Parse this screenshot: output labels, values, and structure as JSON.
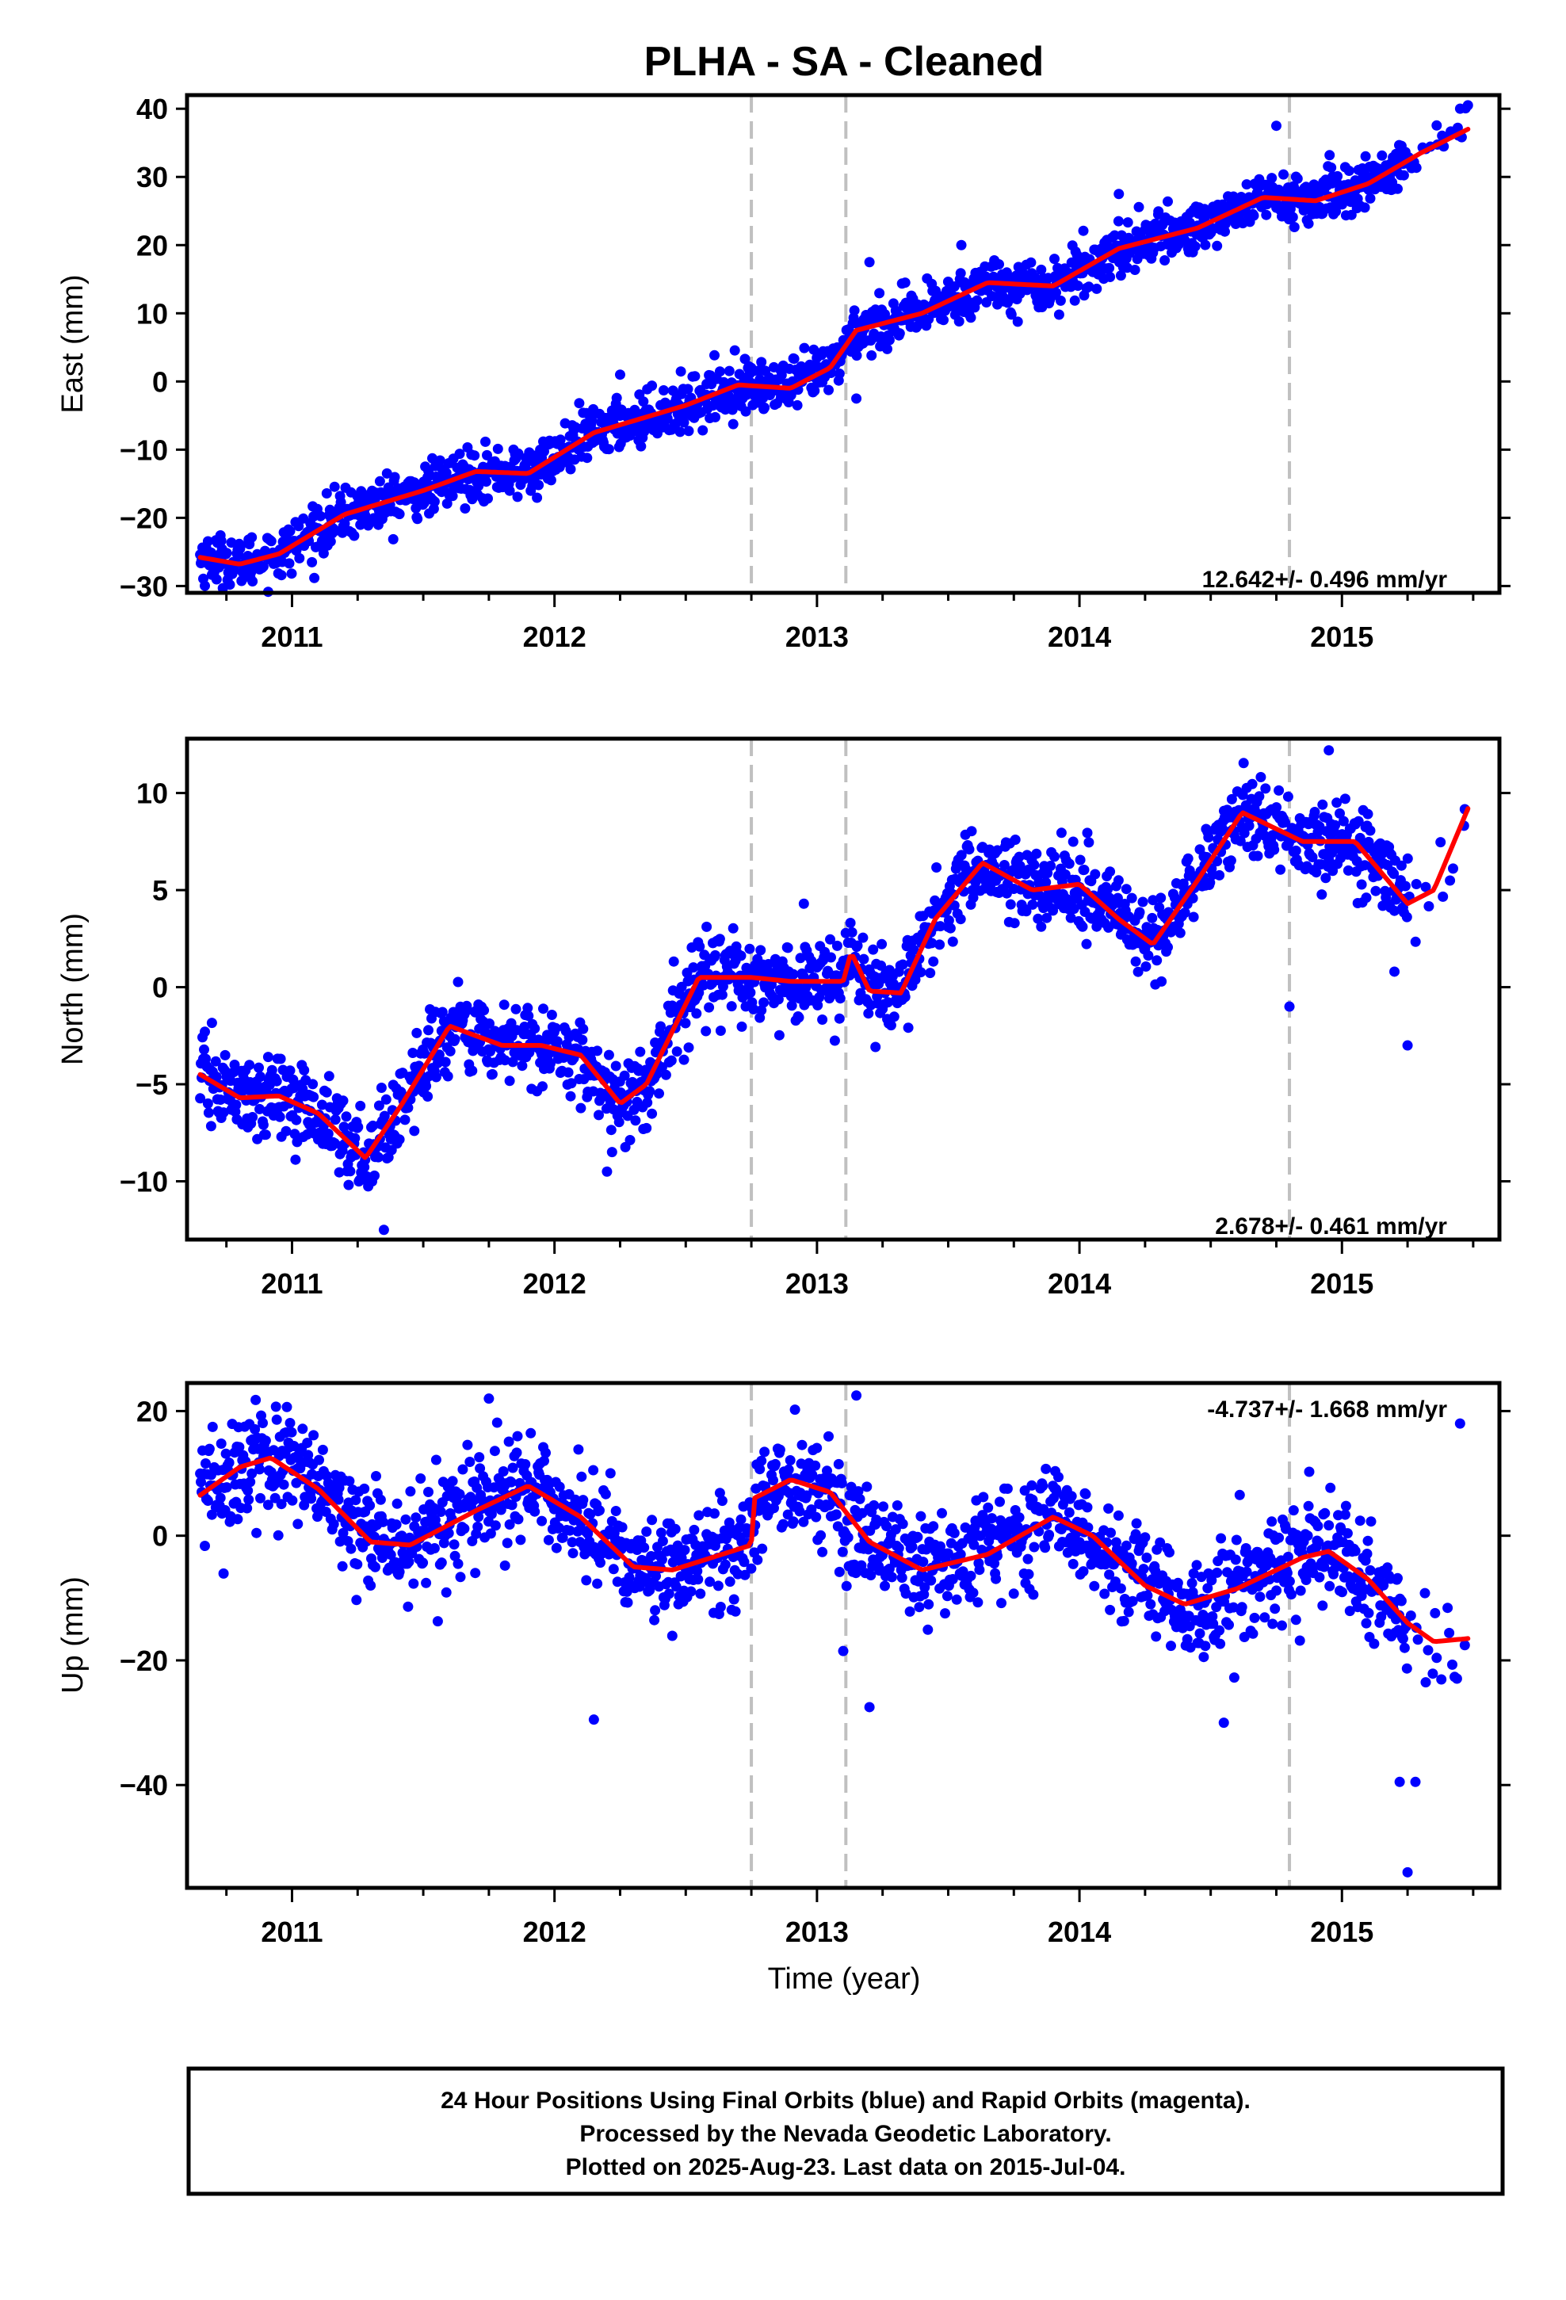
{
  "title": "PLHA  - SA - Cleaned",
  "xlabel": "Time (year)",
  "footer": [
    "24 Hour Positions Using Final Orbits (blue) and Rapid Orbits (magenta).",
    "Processed by the Nevada Geodetic Laboratory.",
    "Plotted on 2025-Aug-23. Last data on 2015-Jul-04."
  ],
  "colors": {
    "points": "#0000ff",
    "fit": "#ff0000",
    "breaks": "#c0c0c0",
    "axes": "#000000"
  },
  "chart_data": [
    {
      "type": "scatter",
      "ylabel": "East (mm)",
      "xlim": [
        2010.6,
        2015.6
      ],
      "ylim": [
        -31,
        42
      ],
      "yticks": [
        40,
        30,
        20,
        10,
        0,
        -10,
        -20,
        -30
      ],
      "xticks": [
        2011,
        2012,
        2013,
        2014,
        2015
      ],
      "rate_text": "12.642+/- 0.496 mm/yr",
      "rate_position": "bottom-right",
      "breaks": [
        2012.75,
        2013.11,
        2014.8
      ],
      "trend": [
        [
          2010.65,
          -25.8
        ],
        [
          2010.8,
          -26.8
        ],
        [
          2010.95,
          -25.3
        ],
        [
          2011.2,
          -19.5
        ],
        [
          2011.5,
          -16.0
        ],
        [
          2011.7,
          -13.2
        ],
        [
          2011.9,
          -13.5
        ],
        [
          2012.15,
          -7.5
        ],
        [
          2012.5,
          -3.5
        ],
        [
          2012.7,
          -0.5
        ],
        [
          2012.9,
          -1.0
        ],
        [
          2013.05,
          2.0
        ],
        [
          2013.15,
          7.5
        ],
        [
          2013.4,
          10.0
        ],
        [
          2013.65,
          14.5
        ],
        [
          2013.9,
          14.0
        ],
        [
          2014.15,
          19.5
        ],
        [
          2014.45,
          22.5
        ],
        [
          2014.7,
          27.0
        ],
        [
          2014.9,
          26.5
        ],
        [
          2015.1,
          29.0
        ],
        [
          2015.3,
          33.5
        ],
        [
          2015.48,
          37.0
        ]
      ],
      "scatter_sigma": 1.9,
      "outliers": [
        [
          2014.75,
          37.5
        ],
        [
          2015.48,
          40.5
        ],
        [
          2013.15,
          -2.5
        ],
        [
          2013.2,
          17.5
        ],
        [
          2012.25,
          1.0
        ],
        [
          2014.15,
          27.5
        ],
        [
          2013.55,
          20.0
        ],
        [
          2014.3,
          24.5
        ]
      ]
    },
    {
      "type": "scatter",
      "ylabel": "North (mm)",
      "xlim": [
        2010.6,
        2015.6
      ],
      "ylim": [
        -13,
        12.8
      ],
      "yticks": [
        10,
        5,
        0,
        -5,
        -10
      ],
      "xticks": [
        2011,
        2012,
        2013,
        2014,
        2015
      ],
      "rate_text": "2.678+/- 0.461 mm/yr",
      "rate_position": "bottom-right",
      "breaks": [
        2012.75,
        2013.11,
        2014.8
      ],
      "trend": [
        [
          2010.65,
          -4.5
        ],
        [
          2010.8,
          -5.7
        ],
        [
          2010.95,
          -5.6
        ],
        [
          2011.1,
          -6.5
        ],
        [
          2011.28,
          -8.8
        ],
        [
          2011.42,
          -6.0
        ],
        [
          2011.6,
          -2.0
        ],
        [
          2011.8,
          -3.0
        ],
        [
          2011.95,
          -3.0
        ],
        [
          2012.1,
          -3.5
        ],
        [
          2012.25,
          -6.0
        ],
        [
          2012.35,
          -5.0
        ],
        [
          2012.55,
          0.5
        ],
        [
          2012.75,
          0.5
        ],
        [
          2012.9,
          0.3
        ],
        [
          2013.1,
          0.3
        ],
        [
          2013.13,
          1.8
        ],
        [
          2013.2,
          -0.2
        ],
        [
          2013.32,
          -0.3
        ],
        [
          2013.45,
          3.5
        ],
        [
          2013.63,
          6.4
        ],
        [
          2013.82,
          5.0
        ],
        [
          2014.0,
          5.3
        ],
        [
          2014.15,
          3.5
        ],
        [
          2014.28,
          2.2
        ],
        [
          2014.45,
          5.5
        ],
        [
          2014.62,
          9.0
        ],
        [
          2014.85,
          7.5
        ],
        [
          2015.05,
          7.5
        ],
        [
          2015.25,
          4.3
        ],
        [
          2015.35,
          5.0
        ],
        [
          2015.48,
          9.2
        ]
      ],
      "scatter_sigma": 1.05,
      "outliers": [
        [
          2015.25,
          -3.0
        ],
        [
          2014.95,
          12.2
        ],
        [
          2011.35,
          -12.5
        ],
        [
          2012.2,
          -9.5
        ],
        [
          2015.2,
          0.8
        ],
        [
          2014.8,
          -1.0
        ],
        [
          2012.95,
          4.3
        ]
      ]
    },
    {
      "type": "scatter",
      "ylabel": "Up (mm)",
      "xlim": [
        2010.6,
        2015.6
      ],
      "ylim": [
        -56.5,
        24.5
      ],
      "yticks": [
        20,
        0,
        -20,
        -40
      ],
      "xticks": [
        2011,
        2012,
        2013,
        2014,
        2015
      ],
      "rate_text": "-4.737+/- 1.668 mm/yr",
      "rate_position": "top-right",
      "breaks": [
        2012.75,
        2013.11,
        2014.8
      ],
      "trend": [
        [
          2010.65,
          6.5
        ],
        [
          2010.8,
          11.0
        ],
        [
          2010.92,
          12.5
        ],
        [
          2011.1,
          7.5
        ],
        [
          2011.3,
          -1.0
        ],
        [
          2011.45,
          -1.5
        ],
        [
          2011.7,
          4.0
        ],
        [
          2011.9,
          8.0
        ],
        [
          2012.1,
          3.0
        ],
        [
          2012.3,
          -5.0
        ],
        [
          2012.45,
          -5.5
        ],
        [
          2012.75,
          -1.5
        ],
        [
          2012.76,
          6.0
        ],
        [
          2012.9,
          9.0
        ],
        [
          2013.05,
          7.0
        ],
        [
          2013.2,
          -1.0
        ],
        [
          2013.4,
          -5.5
        ],
        [
          2013.65,
          -3.0
        ],
        [
          2013.9,
          3.0
        ],
        [
          2014.05,
          0.0
        ],
        [
          2014.25,
          -8.0
        ],
        [
          2014.4,
          -11.0
        ],
        [
          2014.6,
          -8.5
        ],
        [
          2014.85,
          -3.5
        ],
        [
          2014.95,
          -2.5
        ],
        [
          2015.1,
          -7.0
        ],
        [
          2015.25,
          -14.0
        ],
        [
          2015.35,
          -17.0
        ],
        [
          2015.48,
          -16.5
        ]
      ],
      "scatter_sigma": 4.3,
      "outliers": [
        [
          2015.25,
          -54.0
        ],
        [
          2015.28,
          -39.5
        ],
        [
          2015.22,
          -39.5
        ],
        [
          2015.45,
          18.0
        ],
        [
          2013.15,
          22.5
        ],
        [
          2012.15,
          -29.5
        ],
        [
          2013.2,
          -27.5
        ],
        [
          2011.75,
          22.0
        ],
        [
          2014.55,
          -30.0
        ],
        [
          2013.1,
          -18.5
        ]
      ]
    }
  ]
}
